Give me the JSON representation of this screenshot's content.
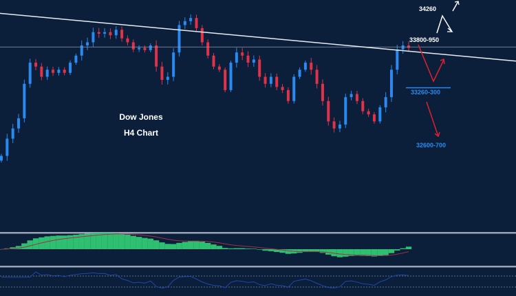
{
  "chart_data": {
    "type": "candlestick",
    "title": "Dow Jones",
    "subtitle": "H4 Chart",
    "ylim": [
      31500,
      34400
    ],
    "grid": false,
    "closes": [
      32410,
      32630,
      32760,
      32890,
      33330,
      33600,
      33550,
      33420,
      33510,
      33470,
      33510,
      33470,
      33600,
      33690,
      33820,
      33860,
      33990,
      33970,
      33990,
      33950,
      34020,
      33910,
      33860,
      33770,
      33790,
      33760,
      33820,
      33550,
      33380,
      33420,
      33730,
      34080,
      34130,
      34170,
      34040,
      33860,
      33690,
      33550,
      33510,
      33250,
      33600,
      33730,
      33690,
      33600,
      33640,
      33420,
      33330,
      33420,
      33290,
      33250,
      33110,
      33420,
      33510,
      33600,
      33510,
      33330,
      33110,
      32850,
      32760,
      32810,
      33160,
      33200,
      33110,
      32980,
      32940,
      32850,
      33030,
      33160,
      33510,
      33770,
      33820,
      33790
    ],
    "trendline": {
      "start": 34230,
      "end": 33620
    },
    "horizontal_level": 33800,
    "support_level": 33280,
    "annotations": {
      "target_high": "34260",
      "resistance": "33800-950",
      "support": "33260-300",
      "target_low": "32600-700"
    },
    "indicators": [
      "MACD",
      "RSI"
    ],
    "colors": {
      "background": "#0b1f3a",
      "up": "#2a8af0",
      "down": "#e0334a",
      "macd_hist": "#2fbf71",
      "macd_signal": "#a0304a",
      "rsi": "#2346a8",
      "support_label": "#2a8af0"
    }
  }
}
